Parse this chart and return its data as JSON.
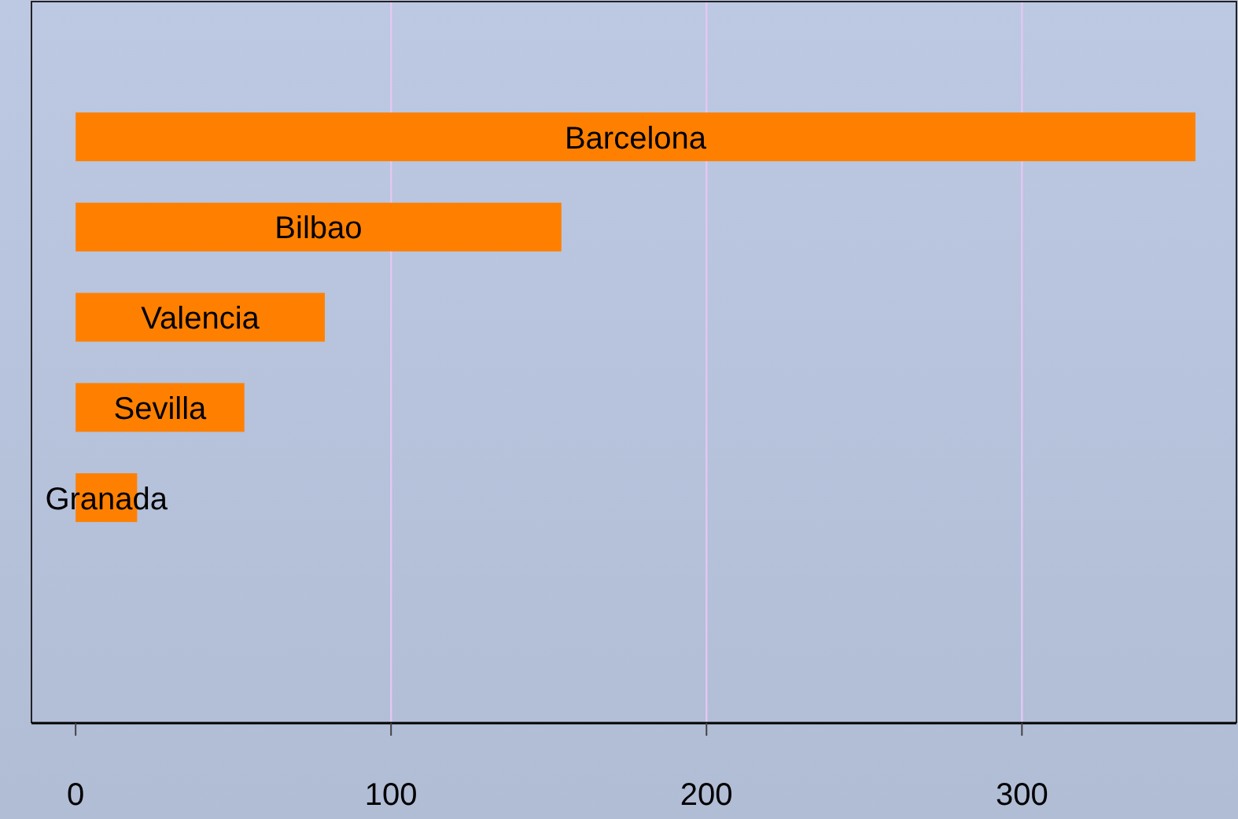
{
  "chart_data": {
    "type": "bar",
    "orientation": "horizontal",
    "categories": [
      null,
      "Barcelona",
      "Bilbao",
      "Valencia",
      "Sevilla",
      "Granada",
      null,
      null
    ],
    "values": [
      null,
      355,
      154,
      79,
      53.5,
      19.5,
      null,
      null
    ],
    "color": "#ff8000",
    "xlim": [
      -14,
      368
    ],
    "xticks": [
      0,
      100,
      200,
      300
    ],
    "grid": "x"
  }
}
